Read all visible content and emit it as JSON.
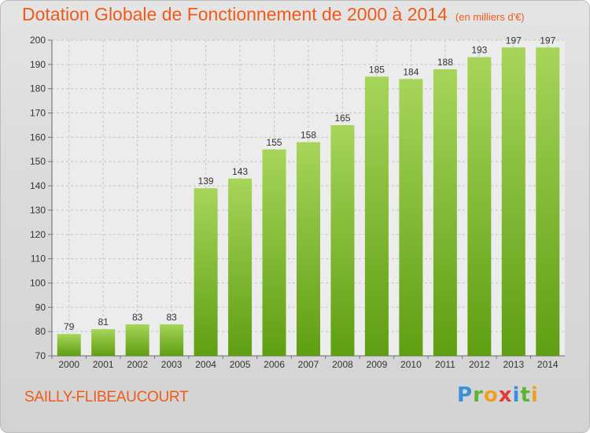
{
  "chart_data": {
    "type": "bar",
    "title": "Dotation Globale de Fonctionnement de 2000 à 2014",
    "subtitle": "(en milliers d'€)",
    "categories": [
      "2000",
      "2001",
      "2002",
      "2003",
      "2004",
      "2005",
      "2006",
      "2007",
      "2008",
      "2009",
      "2010",
      "2011",
      "2012",
      "2013",
      "2014"
    ],
    "values": [
      79,
      81,
      83,
      83,
      139,
      143,
      155,
      158,
      165,
      185,
      184,
      188,
      193,
      197,
      197
    ],
    "ylim": [
      70,
      200
    ],
    "yticks": [
      70,
      80,
      90,
      100,
      110,
      120,
      130,
      140,
      150,
      160,
      170,
      180,
      190,
      200
    ],
    "grid": true,
    "bar_color": "#7ab829",
    "xlabel": "",
    "ylabel": ""
  },
  "footer": {
    "commune": "SAILLY-FLIBEAUCOURT",
    "logo": "Proxiti"
  },
  "colors": {
    "title": "#f05a19",
    "bar": "#7ab829"
  }
}
